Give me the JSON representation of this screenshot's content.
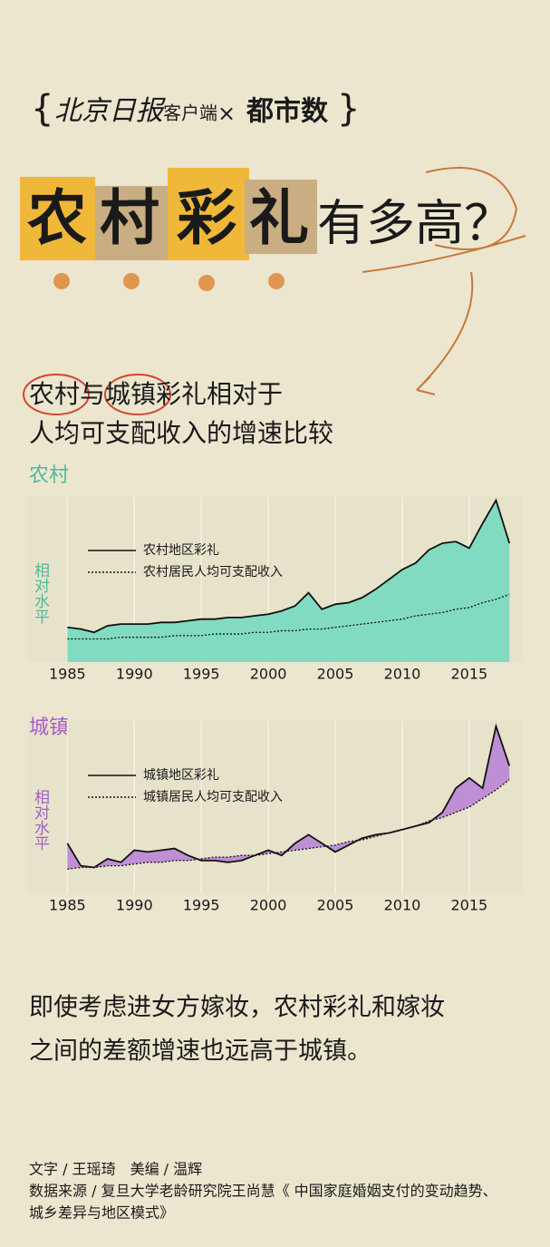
{
  "header": {
    "brand_left": "北京日报",
    "brand_mid": "客户端",
    "cross": "×",
    "brand_right": "都市数"
  },
  "title_parts": [
    "农",
    "村",
    "彩",
    "礼",
    "有多高？"
  ],
  "subtitle_lines": [
    "农村与城镇彩礼相对于",
    "人均可支配收入的增速比较"
  ],
  "chart_data": [
    {
      "type": "line",
      "title": "农村",
      "title_color": "#4fb9a0",
      "ylabel": "相对水平",
      "fill_mode": "under",
      "fill_color": "#6fd9bf",
      "x": [
        1985,
        1986,
        1987,
        1988,
        1989,
        1990,
        1991,
        1992,
        1993,
        1994,
        1995,
        1996,
        1997,
        1998,
        1999,
        2000,
        2001,
        2002,
        2003,
        2004,
        2005,
        2006,
        2007,
        2008,
        2009,
        2010,
        2011,
        2012,
        2013,
        2014,
        2015,
        2016,
        2017,
        2018
      ],
      "xlim": [
        1982,
        2019
      ],
      "xticks": [
        1985,
        1990,
        1995,
        2000,
        2005,
        2010,
        2015
      ],
      "ylim": [
        0,
        10
      ],
      "grid": true,
      "series": [
        {
          "name": "农村地区彩礼",
          "color": "#111111",
          "line_style": "solid",
          "values": [
            2.1,
            2.0,
            1.8,
            2.2,
            2.3,
            2.3,
            2.3,
            2.4,
            2.4,
            2.5,
            2.6,
            2.6,
            2.7,
            2.7,
            2.8,
            2.9,
            3.1,
            3.4,
            4.2,
            3.2,
            3.5,
            3.6,
            3.9,
            4.4,
            5.0,
            5.6,
            6.0,
            6.8,
            7.2,
            7.3,
            6.9,
            8.4,
            9.8,
            7.2
          ]
        },
        {
          "name": "农村居民人均可支配收入",
          "color": "#111111",
          "line_style": "dotted",
          "values": [
            1.4,
            1.4,
            1.4,
            1.4,
            1.5,
            1.5,
            1.5,
            1.5,
            1.6,
            1.6,
            1.6,
            1.7,
            1.7,
            1.7,
            1.8,
            1.8,
            1.9,
            1.9,
            2.0,
            2.0,
            2.1,
            2.2,
            2.3,
            2.4,
            2.5,
            2.6,
            2.8,
            2.9,
            3.0,
            3.2,
            3.3,
            3.6,
            3.8,
            4.1
          ]
        }
      ]
    },
    {
      "type": "line",
      "title": "城镇",
      "title_color": "#a65ec4",
      "ylabel": "相对水平",
      "fill_mode": "between",
      "fill_color": "#b77fd6",
      "x": [
        1985,
        1986,
        1987,
        1988,
        1989,
        1990,
        1991,
        1992,
        1993,
        1994,
        1995,
        1996,
        1997,
        1998,
        1999,
        2000,
        2001,
        2002,
        2003,
        2004,
        2005,
        2006,
        2007,
        2008,
        2009,
        2010,
        2011,
        2012,
        2013,
        2014,
        2015,
        2016,
        2017,
        2018
      ],
      "xlim": [
        1982,
        2019
      ],
      "xticks": [
        1985,
        1990,
        1995,
        2000,
        2005,
        2010,
        2015
      ],
      "ylim": [
        0,
        10
      ],
      "grid": true,
      "series": [
        {
          "name": "城镇地区彩礼",
          "color": "#111111",
          "line_style": "solid",
          "values": [
            2.9,
            1.6,
            1.5,
            2.0,
            1.8,
            2.5,
            2.4,
            2.5,
            2.6,
            2.2,
            1.9,
            1.9,
            1.8,
            1.9,
            2.2,
            2.5,
            2.2,
            2.9,
            3.4,
            2.9,
            2.4,
            2.8,
            3.2,
            3.4,
            3.5,
            3.7,
            3.9,
            4.1,
            4.7,
            6.1,
            6.7,
            6.1,
            9.7,
            7.4
          ]
        },
        {
          "name": "城镇居民人均可支配收入",
          "color": "#111111",
          "line_style": "dotted",
          "values": [
            1.4,
            1.5,
            1.5,
            1.6,
            1.6,
            1.7,
            1.8,
            1.8,
            1.9,
            1.9,
            2.0,
            2.1,
            2.1,
            2.2,
            2.2,
            2.3,
            2.4,
            2.5,
            2.6,
            2.7,
            2.8,
            3.0,
            3.1,
            3.3,
            3.5,
            3.7,
            3.9,
            4.2,
            4.4,
            4.7,
            5.0,
            5.5,
            6.0,
            6.6
          ]
        }
      ]
    }
  ],
  "body_lines": [
    "即使考虑进女方嫁妆，农村彩礼和嫁妆",
    "之间的差额增速也远高于城镇。"
  ],
  "credits": [
    "文字 / 王瑶琦　美编 / 温辉",
    "数据来源 / 复旦大学老龄研究院王尚慧《 中国家庭婚姻支付的变动趋势、",
    "城乡差异与地区模式》"
  ]
}
